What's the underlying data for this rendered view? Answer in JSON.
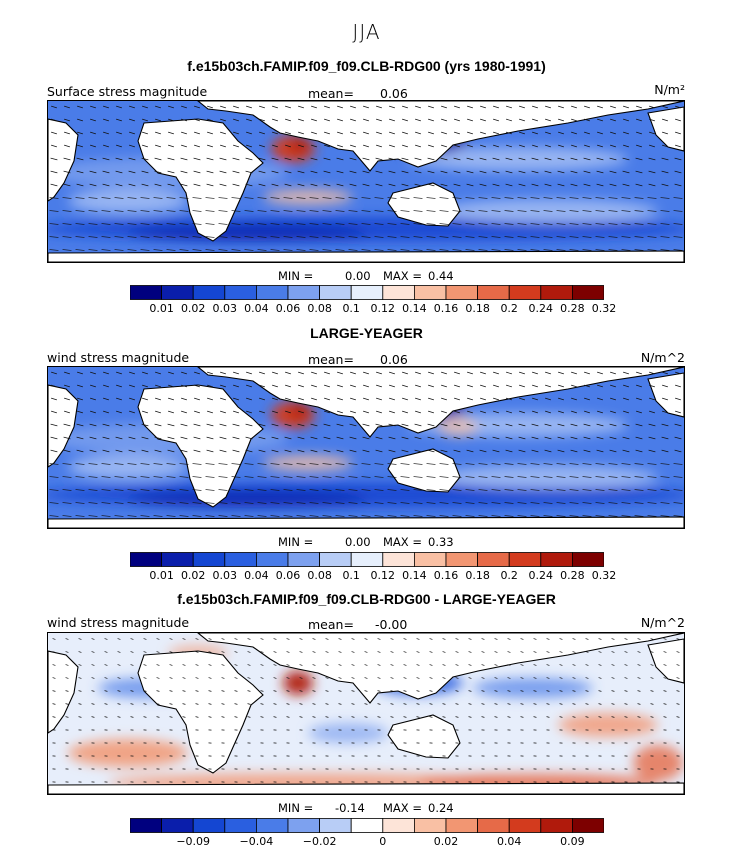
{
  "suptitle": "JJA",
  "panels": [
    {
      "title": "f.e15b03ch.FAMIP.f09_f09.CLB-RDG00 (yrs 1980-1991)",
      "left_label": "Surface stress magnitude",
      "mean_label": "mean=",
      "mean_value": "0.06",
      "units": "N/m²",
      "min_label": "MIN =",
      "min_value": "0.00",
      "max_label": "MAX =",
      "max_value": "0.44",
      "palette": "abs",
      "ticks": [
        "0.01",
        "0.02",
        "0.03",
        "0.04",
        "0.06",
        "0.08",
        "0.1",
        "0.12",
        "0.14",
        "0.16",
        "0.18",
        "0.2",
        "0.24",
        "0.28",
        "0.32"
      ]
    },
    {
      "title": "LARGE-YEAGER",
      "left_label": "wind stress magnitude",
      "mean_label": "mean=",
      "mean_value": "0.06",
      "units": "N/m^2",
      "min_label": "MIN =",
      "min_value": "0.00",
      "max_label": "MAX =",
      "max_value": "0.33",
      "palette": "abs",
      "ticks": [
        "0.01",
        "0.02",
        "0.03",
        "0.04",
        "0.06",
        "0.08",
        "0.1",
        "0.12",
        "0.14",
        "0.16",
        "0.18",
        "0.2",
        "0.24",
        "0.28",
        "0.32"
      ]
    },
    {
      "title": "f.e15b03ch.FAMIP.f09_f09.CLB-RDG00 - LARGE-YEAGER",
      "left_label": "wind stress magnitude",
      "mean_label": "mean=",
      "mean_value": "-0.00",
      "units": "N/m^2",
      "min_label": "MIN =",
      "min_value": "-0.14",
      "max_label": "MAX =",
      "max_value": "0.24",
      "palette": "diff",
      "ticks": [
        "",
        "-0.09",
        "",
        "-0.04",
        "",
        "-0.02",
        "",
        "0",
        "",
        "0.02",
        "",
        "0.04",
        "",
        "0.09",
        ""
      ]
    }
  ],
  "colors": {
    "abs": [
      "#00007f",
      "#0a1eab",
      "#1446d2",
      "#2a5fe0",
      "#4a7ce8",
      "#7da1ef",
      "#b8cdf6",
      "#e6effc",
      "#fde4d8",
      "#f9c0a4",
      "#f29672",
      "#e66a48",
      "#d33b1e",
      "#b01a0c",
      "#7d0000"
    ],
    "diff": [
      "#00007f",
      "#0a1eab",
      "#1446d2",
      "#2a5fe0",
      "#4a7ce8",
      "#7da1ef",
      "#b8cdf6",
      "#ffffff",
      "#fde4d8",
      "#f9c0a4",
      "#f29672",
      "#e66a48",
      "#d33b1e",
      "#b01a0c",
      "#7d0000"
    ],
    "land": "#ffffff"
  },
  "chart_data": [
    {
      "type": "heatmap",
      "title": "f.e15b03ch.FAMIP.f09_f09.CLB-RDG00 (yrs 1980-1991)",
      "field": "Surface stress magnitude",
      "units": "N/m²",
      "mean": 0.06,
      "min": 0.0,
      "max": 0.44,
      "levels": [
        0.01,
        0.02,
        0.03,
        0.04,
        0.06,
        0.08,
        0.1,
        0.12,
        0.14,
        0.16,
        0.18,
        0.2,
        0.24,
        0.28,
        0.32
      ],
      "overlay": "wind stress vectors"
    },
    {
      "type": "heatmap",
      "title": "LARGE-YEAGER",
      "field": "wind stress magnitude",
      "units": "N/m^2",
      "mean": 0.06,
      "min": 0.0,
      "max": 0.33,
      "levels": [
        0.01,
        0.02,
        0.03,
        0.04,
        0.06,
        0.08,
        0.1,
        0.12,
        0.14,
        0.16,
        0.18,
        0.2,
        0.24,
        0.28,
        0.32
      ],
      "overlay": "wind stress vectors"
    },
    {
      "type": "heatmap",
      "title": "f.e15b03ch.FAMIP.f09_f09.CLB-RDG00 - LARGE-YEAGER",
      "field": "wind stress magnitude",
      "units": "N/m^2",
      "mean": -0.0,
      "min": -0.14,
      "max": 0.24,
      "tick_labels": [
        -0.09,
        -0.04,
        -0.02,
        0,
        0.02,
        0.04,
        0.09
      ],
      "overlay": "wind stress difference vectors"
    }
  ]
}
